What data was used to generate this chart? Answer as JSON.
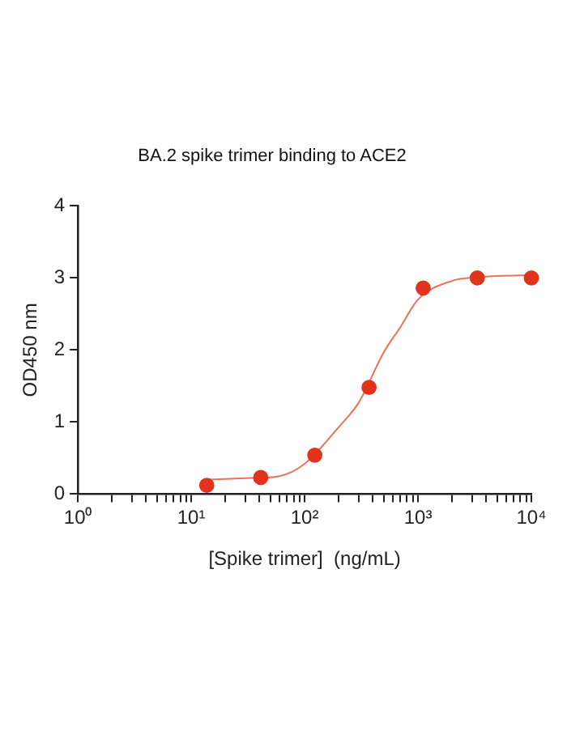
{
  "chart_data": {
    "type": "scatter",
    "title": "BA.2 spike trimer binding to ACE2",
    "xlabel": "[Spike trimer]  (ng/mL)",
    "ylabel": "OD450 nm",
    "log": "x",
    "marker": "circle",
    "xlim": [
      1,
      10000
    ],
    "ylim": [
      0,
      4
    ],
    "yticks": [
      0,
      1,
      2,
      3,
      4
    ],
    "xticks": [
      {
        "value": 1,
        "label": "10⁰"
      },
      {
        "value": 2,
        "label": null
      },
      {
        "value": 3,
        "label": null
      },
      {
        "value": 4,
        "label": null
      },
      {
        "value": 5,
        "label": null
      },
      {
        "value": 6,
        "label": null
      },
      {
        "value": 7,
        "label": null
      },
      {
        "value": 8,
        "label": null
      },
      {
        "value": 9,
        "label": null
      },
      {
        "value": 10,
        "label": "10¹"
      },
      {
        "value": 20,
        "label": null
      },
      {
        "value": 30,
        "label": null
      },
      {
        "value": 40,
        "label": null
      },
      {
        "value": 50,
        "label": null
      },
      {
        "value": 60,
        "label": null
      },
      {
        "value": 70,
        "label": null
      },
      {
        "value": 80,
        "label": null
      },
      {
        "value": 90,
        "label": null
      },
      {
        "value": 100,
        "label": "10²"
      },
      {
        "value": 200,
        "label": null
      },
      {
        "value": 300,
        "label": null
      },
      {
        "value": 400,
        "label": null
      },
      {
        "value": 500,
        "label": null
      },
      {
        "value": 600,
        "label": null
      },
      {
        "value": 700,
        "label": null
      },
      {
        "value": 800,
        "label": null
      },
      {
        "value": 900,
        "label": null
      },
      {
        "value": 1000,
        "label": "10³"
      },
      {
        "value": 2000,
        "label": null
      },
      {
        "value": 3000,
        "label": null
      },
      {
        "value": 4000,
        "label": null
      },
      {
        "value": 5000,
        "label": null
      },
      {
        "value": 6000,
        "label": null
      },
      {
        "value": 7000,
        "label": null
      },
      {
        "value": 8000,
        "label": null
      },
      {
        "value": 9000,
        "label": null
      },
      {
        "value": 10000,
        "label": "10⁴"
      }
    ],
    "series": [
      {
        "type": "line",
        "marker": "none",
        "color": "#e8735a",
        "x": [
          13.7,
          30,
          60,
          100,
          200,
          300,
          500,
          700,
          1000,
          2000,
          3300,
          10000
        ],
        "values": [
          0.2,
          0.22,
          0.25,
          0.42,
          0.93,
          1.27,
          1.97,
          2.32,
          2.7,
          2.96,
          3.01,
          3.04
        ]
      },
      {
        "color": "#e0341c",
        "x": [
          13.7,
          41,
          123,
          370,
          1111,
          3333,
          10000
        ],
        "values": [
          0.12,
          0.23,
          0.54,
          1.48,
          2.86,
          3.0,
          3.0
        ]
      }
    ]
  }
}
